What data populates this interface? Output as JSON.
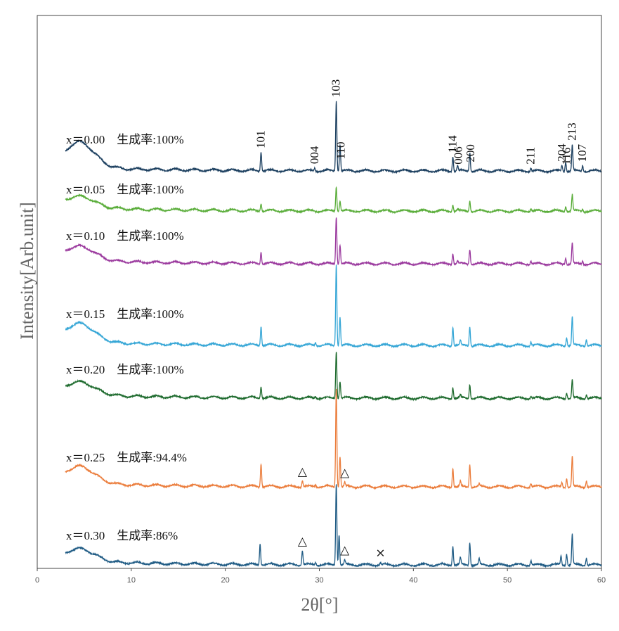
{
  "chart_data": {
    "type": "line",
    "xlabel": "2θ[°]",
    "ylabel": "Intensity[Arb.unit]",
    "xlim": [
      0,
      60
    ],
    "xticks": [
      0,
      10,
      20,
      30,
      40,
      50,
      60
    ],
    "grid": false,
    "series": [
      {
        "label": "x＝0.00　生成率:100%",
        "color": "#1d4060",
        "x_start": 3,
        "x_end": 60,
        "peaks": [
          [
            23.8,
            1.0
          ],
          [
            29.5,
            0.15
          ],
          [
            31.8,
            3.7
          ],
          [
            32.2,
            1.4
          ],
          [
            44.2,
            0.78
          ],
          [
            44.7,
            0.28
          ],
          [
            46.0,
            1.0
          ],
          [
            52.5,
            0.15
          ],
          [
            55.8,
            0.28
          ],
          [
            56.2,
            0.5
          ],
          [
            56.9,
            1.35
          ],
          [
            58.0,
            0.28
          ]
        ]
      },
      {
        "label": "x＝0.05　生成率:100%",
        "color": "#5aad3a",
        "x_start": 3,
        "x_end": 60,
        "peaks": [
          [
            23.8,
            0.4
          ],
          [
            31.8,
            1.3
          ],
          [
            32.2,
            0.55
          ],
          [
            44.2,
            0.36
          ],
          [
            44.7,
            0.1
          ],
          [
            46.0,
            0.58
          ],
          [
            52.5,
            0.12
          ],
          [
            56.2,
            0.28
          ],
          [
            56.9,
            0.85
          ],
          [
            58.0,
            0.12
          ]
        ]
      },
      {
        "label": "x＝0.10　生成率:100%",
        "color": "#9b3a9e",
        "x_start": 3,
        "x_end": 60,
        "peaks": [
          [
            23.8,
            0.6
          ],
          [
            31.8,
            2.5
          ],
          [
            32.2,
            1.0
          ],
          [
            44.2,
            0.58
          ],
          [
            44.7,
            0.15
          ],
          [
            46.0,
            0.8
          ],
          [
            52.5,
            0.15
          ],
          [
            56.2,
            0.35
          ],
          [
            56.9,
            1.1
          ],
          [
            58.0,
            0.15
          ]
        ]
      },
      {
        "label": "x＝0.15　生成率:100%",
        "color": "#35a6d6",
        "x_start": 3,
        "x_end": 60,
        "peaks": [
          [
            23.8,
            1.0
          ],
          [
            29.6,
            0.15
          ],
          [
            31.8,
            4.3
          ],
          [
            32.2,
            1.5
          ],
          [
            44.2,
            1.0
          ],
          [
            45.0,
            0.25
          ],
          [
            46.0,
            1.0
          ],
          [
            52.5,
            0.2
          ],
          [
            56.3,
            0.45
          ],
          [
            56.9,
            1.5
          ],
          [
            58.4,
            0.35
          ]
        ]
      },
      {
        "label": "x＝0.20　生成率:100%",
        "color": "#1e6b2e",
        "x_start": 3,
        "x_end": 60,
        "peaks": [
          [
            23.8,
            0.6
          ],
          [
            29.6,
            0.1
          ],
          [
            31.8,
            2.5
          ],
          [
            32.2,
            0.9
          ],
          [
            44.2,
            0.6
          ],
          [
            45.0,
            0.15
          ],
          [
            46.0,
            0.75
          ],
          [
            52.5,
            0.12
          ],
          [
            56.3,
            0.3
          ],
          [
            56.9,
            0.95
          ],
          [
            58.4,
            0.22
          ]
        ]
      },
      {
        "label": "x＝0.25　生成率:94.4%",
        "color": "#eb7d3c",
        "x_start": 3,
        "x_end": 60,
        "peaks": [
          [
            23.8,
            1.2
          ],
          [
            28.2,
            0.32
          ],
          [
            29.6,
            0.12
          ],
          [
            31.8,
            5.2
          ],
          [
            32.2,
            1.6
          ],
          [
            32.7,
            0.2
          ],
          [
            44.2,
            1.0
          ],
          [
            45.0,
            0.25
          ],
          [
            46.0,
            1.2
          ],
          [
            47.0,
            0.12
          ],
          [
            52.5,
            0.18
          ],
          [
            55.8,
            0.25
          ],
          [
            56.3,
            0.45
          ],
          [
            56.9,
            1.6
          ],
          [
            58.4,
            0.35
          ]
        ]
      },
      {
        "label": "x＝0.30　生成率:86%",
        "color": "#1f5b84",
        "x_start": 3,
        "x_end": 60,
        "peaks": [
          [
            23.7,
            1.1
          ],
          [
            28.2,
            0.75
          ],
          [
            29.6,
            0.15
          ],
          [
            31.8,
            4.3
          ],
          [
            32.1,
            1.6
          ],
          [
            32.7,
            0.22
          ],
          [
            36.5,
            0.12
          ],
          [
            44.2,
            1.0
          ],
          [
            45.0,
            0.35
          ],
          [
            46.0,
            1.2
          ],
          [
            47.0,
            0.3
          ],
          [
            52.5,
            0.25
          ],
          [
            55.7,
            0.45
          ],
          [
            56.3,
            0.6
          ],
          [
            56.9,
            1.6
          ],
          [
            58.4,
            0.4
          ]
        ]
      }
    ],
    "peak_labels": [
      {
        "text": "101",
        "x": 23.8
      },
      {
        "text": "004",
        "x": 29.5
      },
      {
        "text": "103",
        "x": 31.8
      },
      {
        "text": "110",
        "x": 32.3
      },
      {
        "text": "114",
        "x": 44.2
      },
      {
        "text": "006",
        "x": 44.8
      },
      {
        "text": "200",
        "x": 46.1
      },
      {
        "text": "211",
        "x": 52.5
      },
      {
        "text": "204",
        "x": 55.8
      },
      {
        "text": "116",
        "x": 56.3
      },
      {
        "text": "213",
        "x": 56.9
      },
      {
        "text": "107",
        "x": 58.0
      }
    ],
    "markers": [
      {
        "symbol": "△",
        "x": 28.2,
        "series": 5
      },
      {
        "symbol": "△",
        "x": 32.7,
        "series": 5
      },
      {
        "symbol": "△",
        "x": 28.2,
        "series": 6
      },
      {
        "symbol": "△",
        "x": 32.7,
        "series": 6
      },
      {
        "symbol": "×",
        "x": 36.5,
        "series": 6
      }
    ]
  }
}
